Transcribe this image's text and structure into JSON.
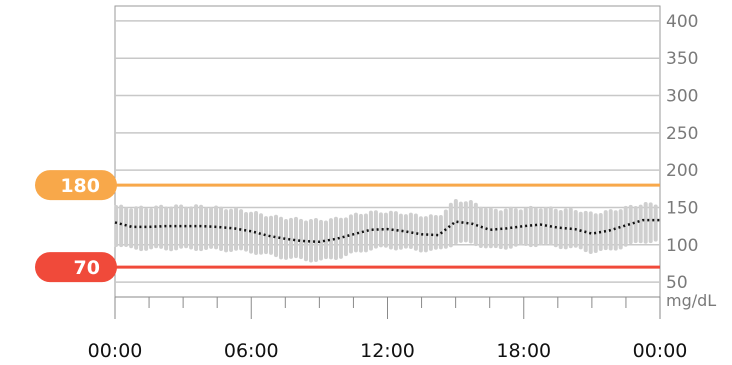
{
  "chart_data": {
    "type": "line",
    "y_unit": "mg/dL",
    "ylim": [
      30,
      420
    ],
    "y_ticks": [
      "50",
      "100",
      "150",
      "200",
      "250",
      "300",
      "350",
      "400"
    ],
    "y_tick_values": [
      50,
      100,
      150,
      200,
      250,
      300,
      350,
      400
    ],
    "xlim": [
      0,
      24
    ],
    "x_ticks": [
      "00:00",
      "06:00",
      "12:00",
      "18:00",
      "00:00"
    ],
    "x_tick_hours": [
      0,
      6,
      12,
      18,
      24
    ],
    "grid": true,
    "thresholds": [
      {
        "label": "180",
        "value": 180,
        "color": "#f8a84a"
      },
      {
        "label": "70",
        "value": 70,
        "color": "#f04a3a"
      }
    ],
    "series": [
      {
        "kind": "median",
        "x_hours": [
          0,
          0.75,
          1.5,
          2.25,
          3,
          3.75,
          4.5,
          5.25,
          6,
          6.75,
          7.5,
          8.25,
          9,
          9.75,
          10.5,
          11.25,
          12,
          12.75,
          13.5,
          14.25,
          15,
          15.75,
          16.5,
          17.25,
          18,
          18.75,
          19.5,
          20.25,
          21,
          21.75,
          22.5,
          23.25,
          24
        ],
        "values": [
          130,
          124,
          124,
          125,
          125,
          125,
          124,
          122,
          118,
          112,
          108,
          105,
          104,
          108,
          114,
          120,
          121,
          118,
          114,
          113,
          131,
          128,
          120,
          122,
          125,
          127,
          123,
          121,
          115,
          119,
          126,
          133,
          133
        ]
      },
      {
        "kind": "range",
        "x_hours": [
          0,
          0.75,
          1.5,
          2.25,
          3,
          3.75,
          4.5,
          5.25,
          6,
          6.75,
          7.5,
          8.25,
          9,
          9.75,
          10.5,
          11.25,
          12,
          12.75,
          13.5,
          14.25,
          15,
          15.75,
          16.5,
          17.25,
          18,
          18.75,
          19.5,
          20.25,
          21,
          21.75,
          22.5,
          23.25,
          24
        ],
        "high": [
          150,
          148,
          148,
          150,
          150,
          150,
          148,
          146,
          142,
          137,
          134,
          132,
          131,
          133,
          138,
          142,
          142,
          140,
          137,
          136,
          158,
          155,
          145,
          146,
          147,
          148,
          146,
          145,
          140,
          143,
          148,
          153,
          153
        ],
        "low": [
          102,
          96,
          96,
          96,
          96,
          96,
          95,
          94,
          92,
          88,
          84,
          82,
          80,
          84,
          90,
          96,
          98,
          96,
          94,
          94,
          104,
          104,
          96,
          98,
          100,
          102,
          99,
          97,
          92,
          94,
          100,
          106,
          106
        ]
      }
    ]
  }
}
